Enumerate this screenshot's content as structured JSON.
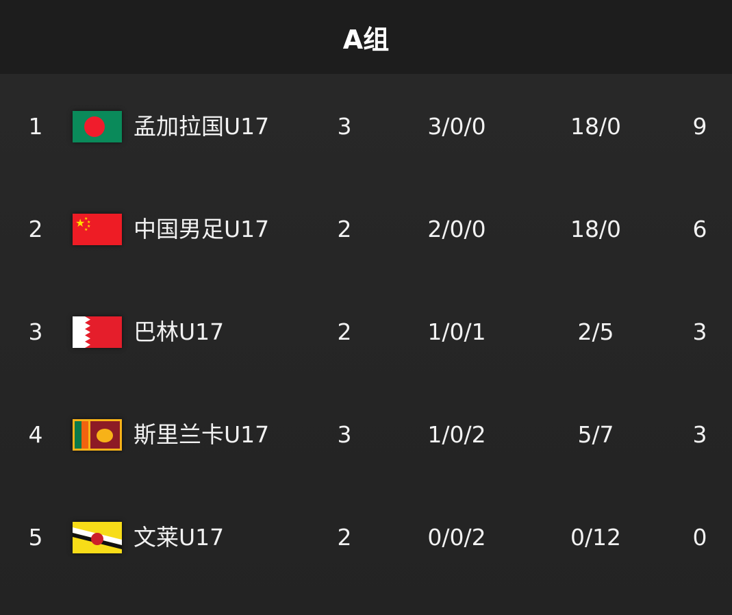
{
  "header": {
    "title": "A组"
  },
  "rows": [
    {
      "rank": "1",
      "flag": "bangladesh-flag-icon",
      "team": "孟加拉国U17",
      "played": "3",
      "wdl": "3/0/0",
      "goals": "18/0",
      "points": "9"
    },
    {
      "rank": "2",
      "flag": "china-flag-icon",
      "team": "中国男足U17",
      "played": "2",
      "wdl": "2/0/0",
      "goals": "18/0",
      "points": "6"
    },
    {
      "rank": "3",
      "flag": "bahrain-flag-icon",
      "team": "巴林U17",
      "played": "2",
      "wdl": "1/0/1",
      "goals": "2/5",
      "points": "3"
    },
    {
      "rank": "4",
      "flag": "sri-lanka-flag-icon",
      "team": "斯里兰卡U17",
      "played": "3",
      "wdl": "1/0/2",
      "goals": "5/7",
      "points": "3"
    },
    {
      "rank": "5",
      "flag": "brunei-flag-icon",
      "team": "文莱U17",
      "played": "2",
      "wdl": "0/0/2",
      "goals": "0/12",
      "points": "0"
    }
  ]
}
